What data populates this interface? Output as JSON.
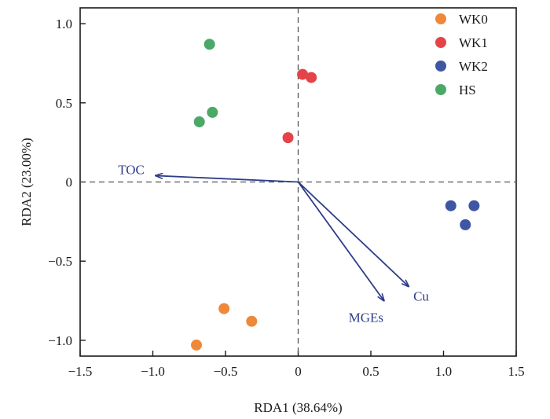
{
  "chart_data": {
    "type": "scatter",
    "xlabel": "RDA1 (38.64%)",
    "ylabel": "RDA2 (23.00%)",
    "xlim": [
      -1.5,
      1.5
    ],
    "ylim": [
      -1.1,
      1.1
    ],
    "x_ticks": [
      -1.5,
      -1.0,
      -0.5,
      0,
      0.5,
      1.0,
      1.5
    ],
    "x_tick_labels": [
      "−1.5",
      "−1.0",
      "−0.5",
      "0",
      "0.5",
      "1.0",
      "1.5"
    ],
    "y_ticks": [
      1.0,
      0.5,
      0,
      -0.5,
      -1.0
    ],
    "y_tick_labels": [
      "1.0",
      "0.5",
      "0",
      "−0.5",
      "−1.0"
    ],
    "grid": false,
    "reference_lines": {
      "x": 0,
      "y": 0,
      "style": "dashed"
    },
    "legend_position": "top-right",
    "series": [
      {
        "name": "WK0",
        "color": "#F0883A",
        "points": [
          [
            -0.7,
            -1.03
          ],
          [
            -0.51,
            -0.8
          ],
          [
            -0.32,
            -0.88
          ]
        ]
      },
      {
        "name": "WK1",
        "color": "#E5434A",
        "points": [
          [
            0.03,
            0.68
          ],
          [
            0.09,
            0.66
          ],
          [
            -0.07,
            0.28
          ]
        ]
      },
      {
        "name": "WK2",
        "color": "#3F56A3",
        "points": [
          [
            1.05,
            -0.15
          ],
          [
            1.21,
            -0.15
          ],
          [
            1.15,
            -0.27
          ]
        ]
      },
      {
        "name": "HS",
        "color": "#4CA866",
        "points": [
          [
            -0.61,
            0.87
          ],
          [
            -0.68,
            0.38
          ],
          [
            -0.59,
            0.44
          ]
        ]
      }
    ],
    "arrows": {
      "color": "#2F3D8A",
      "items": [
        {
          "label": "TOC",
          "x": -0.98,
          "y": 0.04
        },
        {
          "label": "Cu",
          "x": 0.76,
          "y": -0.66
        },
        {
          "label": "MGEs",
          "x": 0.59,
          "y": -0.75
        }
      ]
    }
  }
}
